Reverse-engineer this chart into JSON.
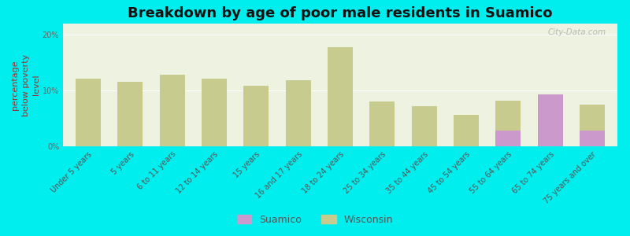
{
  "title": "Breakdown by age of poor male residents in Suamico",
  "ylabel": "percentage\nbelow poverty\nlevel",
  "categories": [
    "Under 5 years",
    "5 years",
    "6 to 11 years",
    "12 to 14 years",
    "15 years",
    "16 and 17 years",
    "18 to 24 years",
    "25 to 34 years",
    "35 to 44 years",
    "45 to 54 years",
    "55 to 64 years",
    "65 to 74 years",
    "75 years and over"
  ],
  "suamico": [
    0,
    0,
    0,
    0,
    0,
    0,
    0,
    0,
    0,
    0,
    2.8,
    9.3,
    2.8
  ],
  "wisconsin": [
    12.1,
    11.5,
    12.8,
    12.1,
    10.8,
    11.8,
    17.8,
    8.0,
    7.2,
    5.7,
    8.2,
    8.0,
    7.5
  ],
  "suamico_color": "#cc99cc",
  "wisconsin_color": "#c8cb8e",
  "background_color": "#00eeee",
  "plot_bg_color": "#eef2e0",
  "ylim": [
    0,
    22
  ],
  "yticks": [
    0,
    10,
    20
  ],
  "ytick_labels": [
    "0%",
    "10%",
    "20%"
  ],
  "bar_width": 0.6,
  "title_fontsize": 13,
  "axis_label_fontsize": 8,
  "tick_fontsize": 7,
  "watermark": "City-Data.com"
}
